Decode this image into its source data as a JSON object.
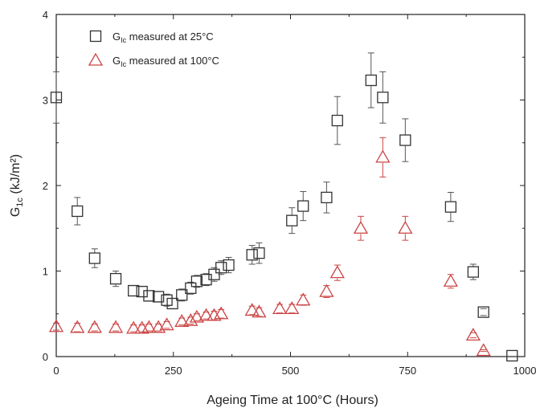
{
  "chart_data": {
    "type": "scatter",
    "title": "",
    "xlabel": "Ageing Time at 100°C (Hours)",
    "ylabel": {
      "main": "G",
      "sub": "1c",
      "unit": " (kJ/m²)"
    },
    "xlim": [
      0,
      1000
    ],
    "ylim": [
      0,
      4
    ],
    "xticks": [
      0,
      250,
      500,
      750,
      1000
    ],
    "yticks": [
      0,
      1,
      2,
      3,
      4
    ],
    "grid": false,
    "legend_position": "top-left",
    "series": [
      {
        "name": {
          "main": "G",
          "sub": "Ic",
          "rest": " measured at 25°C"
        },
        "marker": "square",
        "color": "#333333",
        "points": [
          {
            "x": 0,
            "y": 3.03,
            "err": 0.3
          },
          {
            "x": 45,
            "y": 1.7,
            "err": 0.16
          },
          {
            "x": 82,
            "y": 1.15,
            "err": 0.11
          },
          {
            "x": 127,
            "y": 0.91,
            "err": 0.09
          },
          {
            "x": 165,
            "y": 0.77,
            "err": 0.06
          },
          {
            "x": 183,
            "y": 0.76,
            "err": 0.06
          },
          {
            "x": 198,
            "y": 0.71,
            "err": 0.06
          },
          {
            "x": 218,
            "y": 0.7,
            "err": 0.06
          },
          {
            "x": 236,
            "y": 0.66,
            "err": 0.07
          },
          {
            "x": 248,
            "y": 0.62,
            "err": 0.06
          },
          {
            "x": 268,
            "y": 0.72,
            "err": 0.07
          },
          {
            "x": 287,
            "y": 0.8,
            "err": 0.07
          },
          {
            "x": 300,
            "y": 0.88,
            "err": 0.07
          },
          {
            "x": 320,
            "y": 0.9,
            "err": 0.07
          },
          {
            "x": 337,
            "y": 0.96,
            "err": 0.08
          },
          {
            "x": 352,
            "y": 1.04,
            "err": 0.08
          },
          {
            "x": 368,
            "y": 1.07,
            "err": 0.09
          },
          {
            "x": 418,
            "y": 1.19,
            "err": 0.11
          },
          {
            "x": 433,
            "y": 1.21,
            "err": 0.12
          },
          {
            "x": 503,
            "y": 1.59,
            "err": 0.15
          },
          {
            "x": 527,
            "y": 1.76,
            "err": 0.17
          },
          {
            "x": 577,
            "y": 1.86,
            "err": 0.18
          },
          {
            "x": 600,
            "y": 2.76,
            "err": 0.28
          },
          {
            "x": 672,
            "y": 3.23,
            "err": 0.32
          },
          {
            "x": 697,
            "y": 3.03,
            "err": 0.3
          },
          {
            "x": 745,
            "y": 2.53,
            "err": 0.25
          },
          {
            "x": 842,
            "y": 1.75,
            "err": 0.17
          },
          {
            "x": 890,
            "y": 0.99,
            "err": 0.09
          },
          {
            "x": 912,
            "y": 0.52,
            "err": 0.04
          },
          {
            "x": 973,
            "y": 0.01,
            "err": 0.0
          }
        ]
      },
      {
        "name": {
          "main": "G",
          "sub": "Ic",
          "rest": " measured at 100°C"
        },
        "marker": "triangle",
        "color": "#cc4444",
        "points": [
          {
            "x": 0,
            "y": 0.35,
            "err": 0.04
          },
          {
            "x": 45,
            "y": 0.34,
            "err": 0.05
          },
          {
            "x": 82,
            "y": 0.34,
            "err": 0.04
          },
          {
            "x": 127,
            "y": 0.34,
            "err": 0.04
          },
          {
            "x": 165,
            "y": 0.33,
            "err": 0.04
          },
          {
            "x": 183,
            "y": 0.33,
            "err": 0.04
          },
          {
            "x": 198,
            "y": 0.34,
            "err": 0.04
          },
          {
            "x": 218,
            "y": 0.34,
            "err": 0.04
          },
          {
            "x": 236,
            "y": 0.37,
            "err": 0.04
          },
          {
            "x": 268,
            "y": 0.41,
            "err": 0.04
          },
          {
            "x": 287,
            "y": 0.42,
            "err": 0.04
          },
          {
            "x": 300,
            "y": 0.46,
            "err": 0.04
          },
          {
            "x": 320,
            "y": 0.48,
            "err": 0.04
          },
          {
            "x": 337,
            "y": 0.48,
            "err": 0.05
          },
          {
            "x": 352,
            "y": 0.5,
            "err": 0.05
          },
          {
            "x": 418,
            "y": 0.54,
            "err": 0.05
          },
          {
            "x": 433,
            "y": 0.52,
            "err": 0.05
          },
          {
            "x": 477,
            "y": 0.56,
            "err": 0.05
          },
          {
            "x": 503,
            "y": 0.56,
            "err": 0.05
          },
          {
            "x": 527,
            "y": 0.66,
            "err": 0.06
          },
          {
            "x": 577,
            "y": 0.76,
            "err": 0.07
          },
          {
            "x": 600,
            "y": 0.98,
            "err": 0.09
          },
          {
            "x": 650,
            "y": 1.5,
            "err": 0.14
          },
          {
            "x": 697,
            "y": 2.33,
            "err": 0.23
          },
          {
            "x": 745,
            "y": 1.5,
            "err": 0.14
          },
          {
            "x": 842,
            "y": 0.88,
            "err": 0.08
          },
          {
            "x": 890,
            "y": 0.25,
            "err": 0.03
          },
          {
            "x": 912,
            "y": 0.07,
            "err": 0.01
          }
        ]
      }
    ]
  }
}
